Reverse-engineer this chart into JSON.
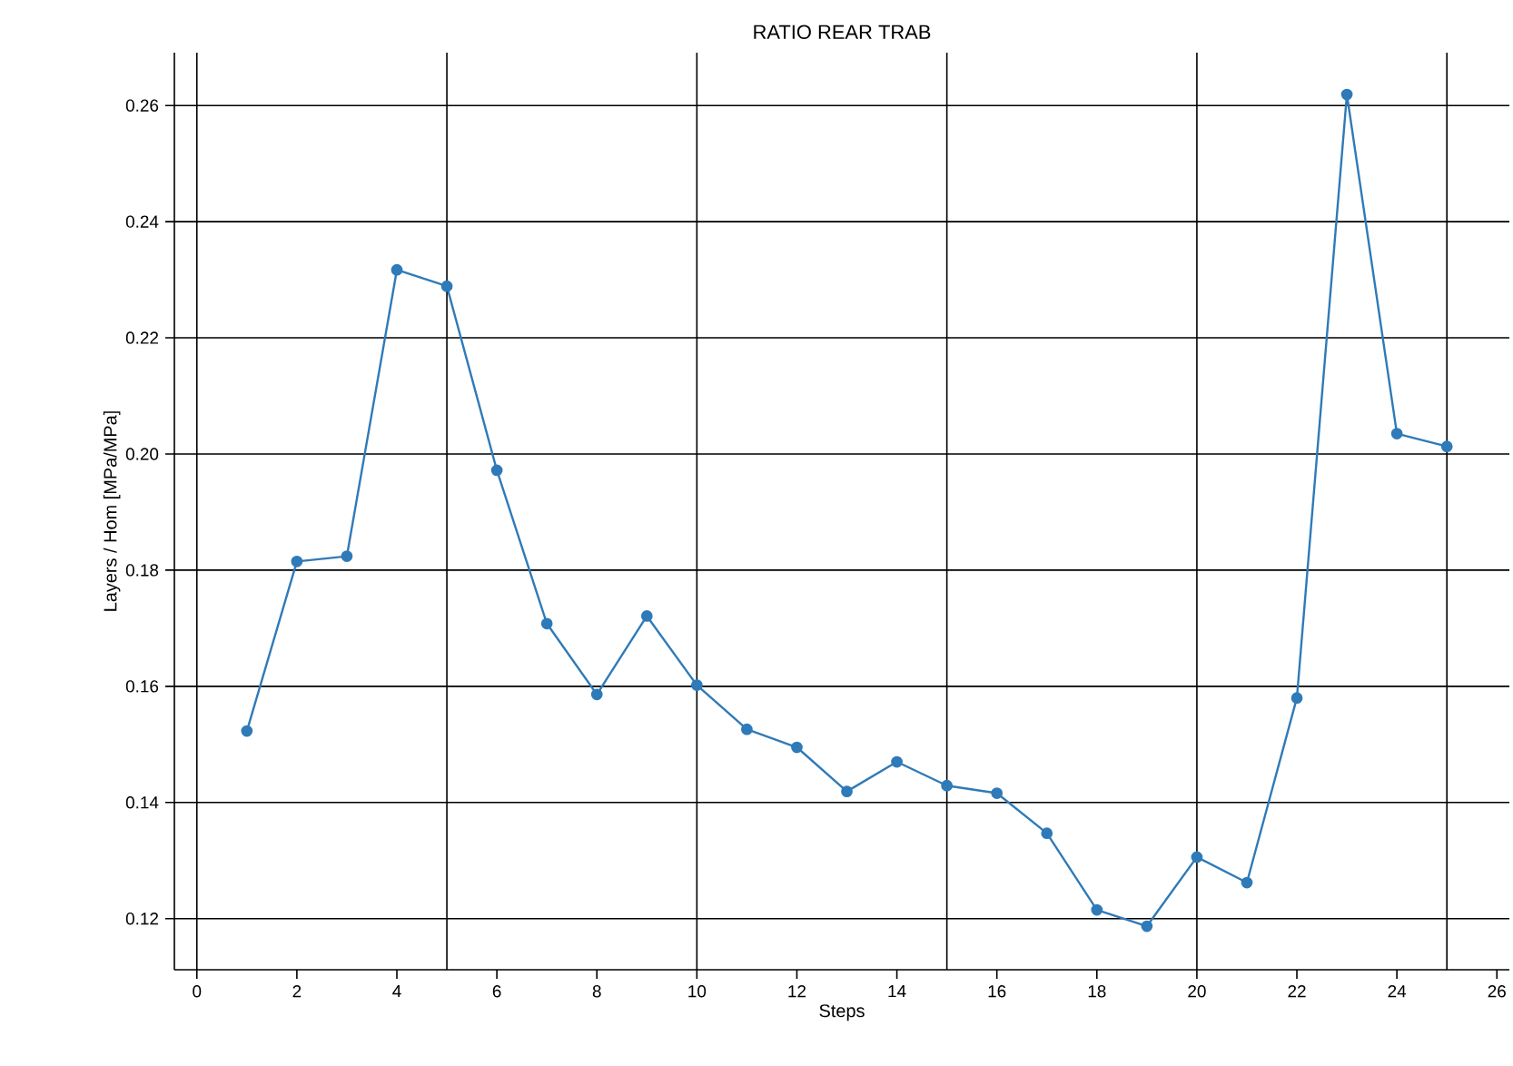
{
  "chart_data": {
    "type": "line",
    "title": "RATIO REAR TRAB",
    "xlabel": "Steps",
    "ylabel": "Layers / Hom [MPa/MPa]",
    "x": [
      1,
      2,
      3,
      4,
      5,
      6,
      7,
      8,
      9,
      10,
      11,
      12,
      13,
      14,
      15,
      16,
      17,
      18,
      19,
      20,
      21,
      22,
      23,
      24,
      25
    ],
    "series": [
      {
        "color": "#2f7ab8",
        "values": [
          0.1523,
          0.1815,
          0.1824,
          0.2317,
          0.2289,
          0.1972,
          0.1708,
          0.1586,
          0.1721,
          0.1602,
          0.1526,
          0.1495,
          0.1419,
          0.147,
          0.1429,
          0.1416,
          0.1347,
          0.1215,
          0.1187,
          0.1306,
          0.1262,
          0.158,
          0.2619,
          0.2035,
          0.2013
        ]
      }
    ],
    "xlim": [
      -0.45,
      26.25
    ],
    "ylim": [
      0.1112,
      0.2691
    ],
    "xticks": [
      0,
      2,
      4,
      6,
      8,
      10,
      12,
      14,
      16,
      18,
      20,
      22,
      24,
      26
    ],
    "yticks": [
      {
        "value": 0.12,
        "label": "0.12"
      },
      {
        "value": 0.14,
        "label": "0.14"
      },
      {
        "value": 0.16,
        "label": "0.16"
      },
      {
        "value": 0.18,
        "label": "0.18"
      },
      {
        "value": 0.2,
        "label": "0.20"
      },
      {
        "value": 0.22,
        "label": "0.22"
      },
      {
        "value": 0.24,
        "label": "0.24"
      },
      {
        "value": 0.26,
        "label": "0.26"
      }
    ],
    "grid": "y",
    "marker": "circle",
    "line_style": "solid",
    "ref_lines": [
      {
        "axis": "x",
        "value": 0,
        "color": "#000000"
      },
      {
        "axis": "x",
        "value": 5,
        "color": "#000000"
      },
      {
        "axis": "x",
        "value": 10,
        "color": "#000000"
      },
      {
        "axis": "x",
        "value": 15,
        "color": "#000000"
      },
      {
        "axis": "x",
        "value": 20,
        "color": "#000000"
      },
      {
        "axis": "x",
        "value": 25,
        "color": "#000000"
      }
    ]
  }
}
